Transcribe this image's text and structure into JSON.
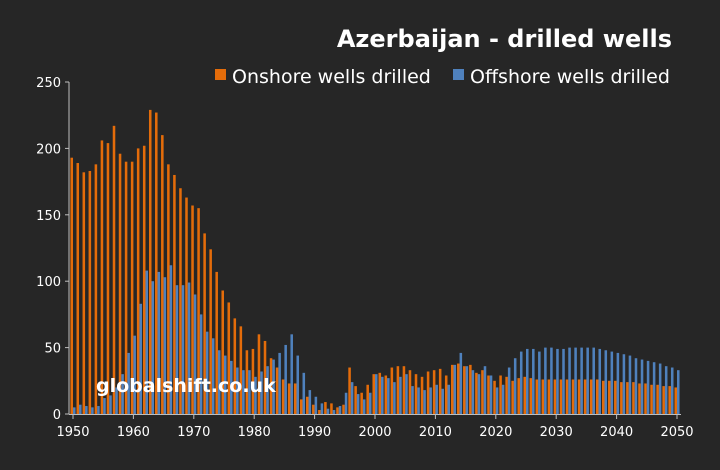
{
  "chart_data": {
    "type": "bar",
    "title": "Azerbaijan - drilled wells",
    "watermark": "globalshift.co.uk",
    "xlabel": "",
    "ylabel": "",
    "ylim": [
      0,
      250
    ],
    "yticks": [
      0,
      50,
      100,
      150,
      200,
      250
    ],
    "xticks": [
      1950,
      1960,
      1970,
      1980,
      1990,
      2000,
      2010,
      2020,
      2030,
      2040,
      2050
    ],
    "grid": false,
    "legend_position": "top-right",
    "x_start": 1950,
    "x_end": 2050,
    "colors": {
      "onshore": "#e46c0a",
      "offshore": "#4f81bd",
      "background": "#262626"
    },
    "series": [
      {
        "name": "Onshore wells drilled",
        "values": [
          193,
          189,
          182,
          183,
          188,
          206,
          204,
          217,
          196,
          190,
          190,
          200,
          202,
          229,
          227,
          210,
          188,
          180,
          170,
          163,
          157,
          155,
          136,
          124,
          107,
          93,
          84,
          72,
          66,
          48,
          49,
          60,
          55,
          42,
          35,
          26,
          23,
          23,
          11,
          13,
          7,
          3,
          9,
          8,
          5,
          7,
          35,
          21,
          16,
          22,
          30,
          31,
          29,
          35,
          36,
          36,
          33,
          30,
          28,
          32,
          33,
          34,
          29,
          37,
          38,
          36,
          37,
          31,
          33,
          29,
          25,
          29,
          28,
          25,
          27,
          28,
          27,
          26,
          26,
          26,
          26,
          26,
          26,
          26,
          26,
          26,
          26,
          26,
          25,
          25,
          25,
          24,
          24,
          24,
          23,
          23,
          22,
          22,
          21,
          21,
          20
        ]
      },
      {
        "name": "Offshore wells drilled",
        "values": [
          5,
          7,
          6,
          5,
          6,
          12,
          14,
          20,
          30,
          46,
          59,
          83,
          108,
          100,
          107,
          103,
          112,
          97,
          97,
          99,
          90,
          75,
          62,
          57,
          48,
          44,
          40,
          35,
          33,
          33,
          28,
          32,
          36,
          41,
          46,
          52,
          60,
          44,
          31,
          18,
          13,
          8,
          4,
          3,
          6,
          16,
          24,
          15,
          11,
          16,
          30,
          28,
          27,
          24,
          28,
          30,
          21,
          20,
          18,
          20,
          22,
          19,
          22,
          37,
          46,
          36,
          33,
          30,
          36,
          29,
          20,
          22,
          35,
          42,
          47,
          49,
          49,
          47,
          50,
          50,
          49,
          49,
          50,
          50,
          50,
          50,
          50,
          49,
          48,
          47,
          46,
          45,
          44,
          42,
          41,
          40,
          39,
          38,
          36,
          35,
          33
        ]
      }
    ]
  }
}
